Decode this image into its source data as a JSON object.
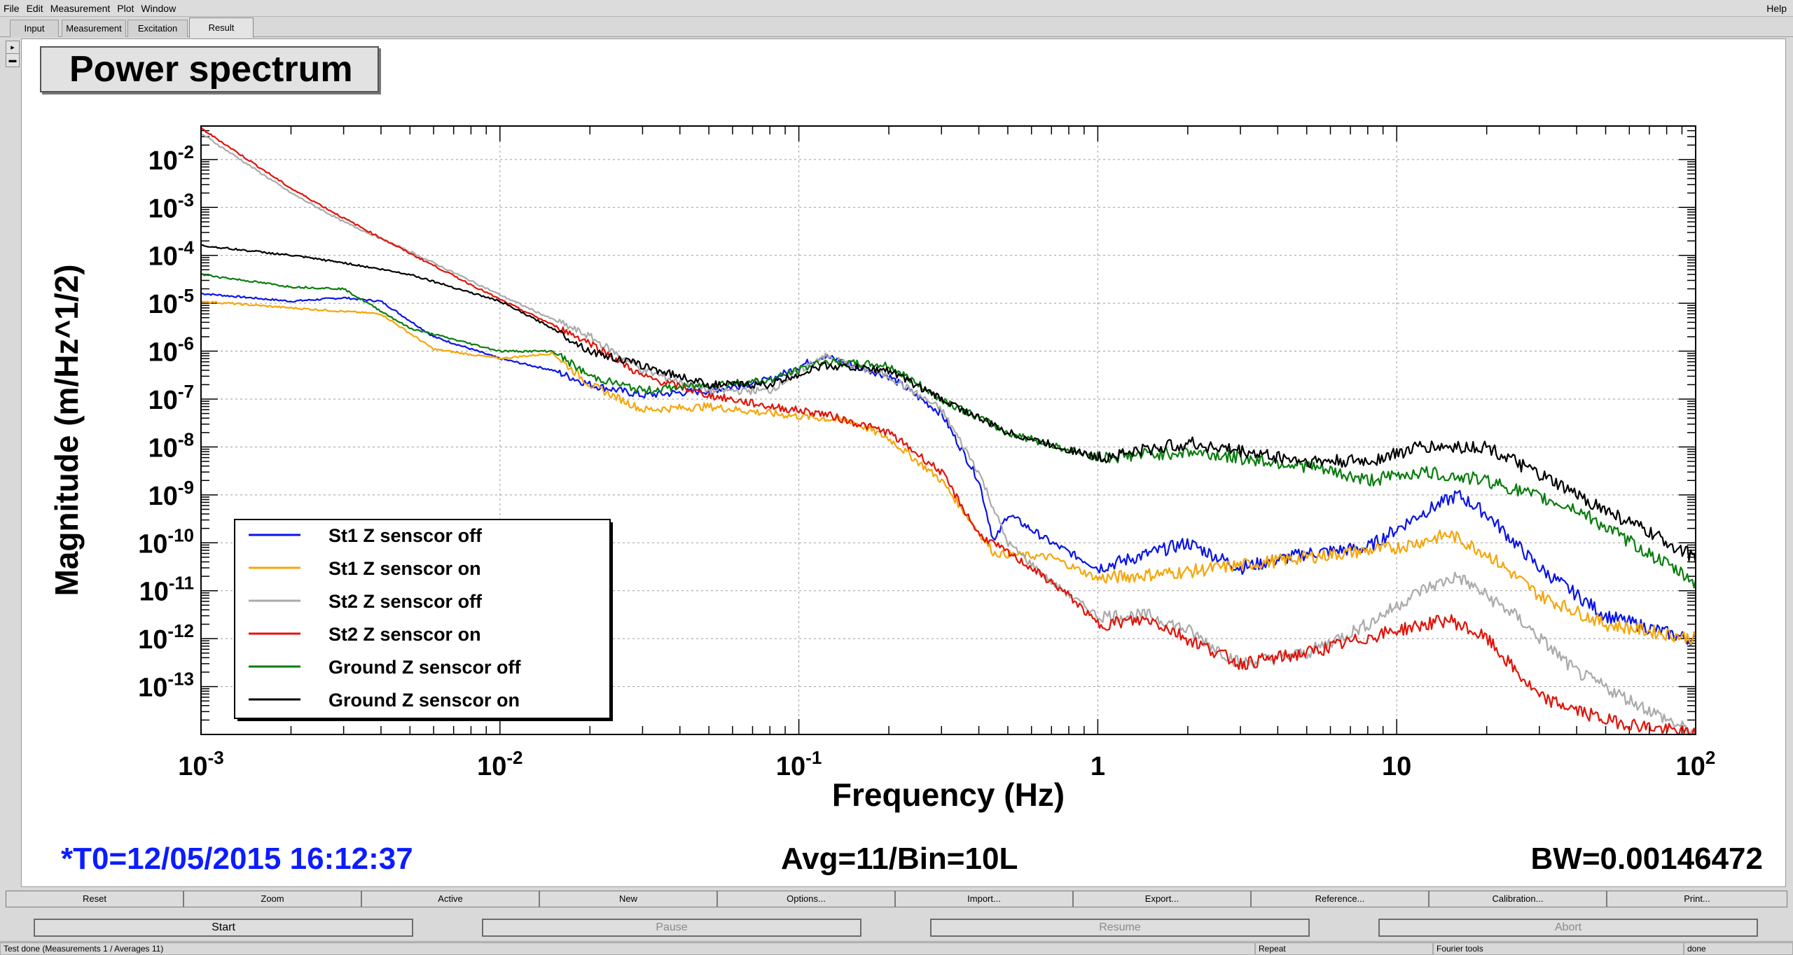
{
  "menubar": {
    "file": "File",
    "edit": "Edit",
    "measurement": "Measurement",
    "plot": "Plot",
    "window": "Window",
    "help": "Help"
  },
  "tabs": [
    "Input",
    "Measurement",
    "Excitation",
    "Result"
  ],
  "plot": {
    "title": "Power spectrum",
    "t0": "*T0=12/05/2015 16:12:37",
    "avg": "Avg=11/Bin=10L",
    "bw": "BW=0.00146472"
  },
  "chart_data": {
    "type": "line",
    "title": "Power spectrum",
    "xlabel": "Frequency (Hz)",
    "ylabel": "Magnitude (m/Hz^1/2)",
    "xscale": "log",
    "yscale": "log",
    "xlim": [
      0.001,
      100
    ],
    "ylim": [
      1e-14,
      0.05
    ],
    "grid": true,
    "legend_position": "bottom-left",
    "x_tick_labels": [
      {
        "v": 0.001,
        "base": "10",
        "exp": "-3"
      },
      {
        "v": 0.01,
        "base": "10",
        "exp": "-2"
      },
      {
        "v": 0.1,
        "base": "10",
        "exp": "-1"
      },
      {
        "v": 1,
        "base": "1",
        "exp": ""
      },
      {
        "v": 10,
        "base": "10",
        "exp": ""
      },
      {
        "v": 100,
        "base": "10",
        "exp": "2"
      }
    ],
    "y_tick_labels": [
      {
        "v": 0.01,
        "base": "10",
        "exp": "-2"
      },
      {
        "v": 0.001,
        "base": "10",
        "exp": "-3"
      },
      {
        "v": 0.0001,
        "base": "10",
        "exp": "-4"
      },
      {
        "v": 1e-05,
        "base": "10",
        "exp": "-5"
      },
      {
        "v": 1e-06,
        "base": "10",
        "exp": "-6"
      },
      {
        "v": 1e-07,
        "base": "10",
        "exp": "-7"
      },
      {
        "v": 1e-08,
        "base": "10",
        "exp": "-8"
      },
      {
        "v": 1e-09,
        "base": "10",
        "exp": "-9"
      },
      {
        "v": 1e-10,
        "base": "10",
        "exp": "-10"
      },
      {
        "v": 1e-11,
        "base": "10",
        "exp": "-11"
      },
      {
        "v": 1e-12,
        "base": "10",
        "exp": "-12"
      },
      {
        "v": 1e-13,
        "base": "10",
        "exp": "-13"
      }
    ],
    "series": [
      {
        "name": "St1 Z senscor off",
        "color": "#0a14e6",
        "points": [
          [
            0.001,
            1.6e-05
          ],
          [
            0.002,
            1.1e-05
          ],
          [
            0.003,
            1.3e-05
          ],
          [
            0.004,
            1.1e-05
          ],
          [
            0.006,
            2e-06
          ],
          [
            0.01,
            7e-07
          ],
          [
            0.015,
            4e-07
          ],
          [
            0.02,
            2e-07
          ],
          [
            0.03,
            1.2e-07
          ],
          [
            0.05,
            1.5e-07
          ],
          [
            0.08,
            2.5e-07
          ],
          [
            0.12,
            8e-07
          ],
          [
            0.2,
            3e-07
          ],
          [
            0.3,
            5e-08
          ],
          [
            0.4,
            2e-09
          ],
          [
            0.45,
            1e-10
          ],
          [
            0.5,
            4e-10
          ],
          [
            0.7,
            1e-10
          ],
          [
            1,
            3e-11
          ],
          [
            2,
            1e-10
          ],
          [
            3,
            3e-11
          ],
          [
            5,
            6e-11
          ],
          [
            8,
            8e-11
          ],
          [
            12,
            4e-10
          ],
          [
            16,
            1e-09
          ],
          [
            20,
            4e-10
          ],
          [
            30,
            3e-11
          ],
          [
            50,
            3e-12
          ],
          [
            100,
            9e-13
          ]
        ]
      },
      {
        "name": "St1 Z senscor on",
        "color": "#f5a60a",
        "points": [
          [
            0.001,
            1.1e-05
          ],
          [
            0.002,
            8e-06
          ],
          [
            0.004,
            6e-06
          ],
          [
            0.006,
            1.1e-06
          ],
          [
            0.01,
            7e-07
          ],
          [
            0.015,
            9e-07
          ],
          [
            0.02,
            2e-07
          ],
          [
            0.03,
            6e-08
          ],
          [
            0.05,
            7e-08
          ],
          [
            0.08,
            5e-08
          ],
          [
            0.15,
            3.5e-08
          ],
          [
            0.2,
            1.5e-08
          ],
          [
            0.3,
            2e-09
          ],
          [
            0.45,
            6e-11
          ],
          [
            0.7,
            5e-11
          ],
          [
            1,
            1.8e-11
          ],
          [
            2,
            2.5e-11
          ],
          [
            5,
            5e-11
          ],
          [
            10,
            8e-11
          ],
          [
            15,
            1.5e-10
          ],
          [
            20,
            6e-11
          ],
          [
            30,
            8e-12
          ],
          [
            50,
            2e-12
          ],
          [
            100,
            1e-12
          ]
        ]
      },
      {
        "name": "St2 Z senscor off",
        "color": "#aaaaaa",
        "points": [
          [
            0.001,
            0.035
          ],
          [
            0.002,
            0.002
          ],
          [
            0.003,
            0.0005
          ],
          [
            0.005,
            0.00012
          ],
          [
            0.01,
            1.5e-05
          ],
          [
            0.02,
            2e-06
          ],
          [
            0.03,
            4e-07
          ],
          [
            0.05,
            1.5e-07
          ],
          [
            0.08,
            1.5e-07
          ],
          [
            0.12,
            8e-07
          ],
          [
            0.2,
            3e-07
          ],
          [
            0.3,
            6e-08
          ],
          [
            0.4,
            3e-09
          ],
          [
            0.5,
            1e-10
          ],
          [
            0.7,
            1.5e-11
          ],
          [
            1,
            3e-12
          ],
          [
            1.5,
            3e-12
          ],
          [
            2,
            1.5e-12
          ],
          [
            3,
            3e-13
          ],
          [
            5,
            5e-13
          ],
          [
            8,
            2e-12
          ],
          [
            12,
            1e-11
          ],
          [
            16,
            2e-11
          ],
          [
            25,
            3e-12
          ],
          [
            40,
            2e-13
          ],
          [
            100,
            1e-14
          ]
        ]
      },
      {
        "name": "St2 Z senscor on",
        "color": "#e0140a",
        "points": [
          [
            0.001,
            0.045
          ],
          [
            0.002,
            0.0025
          ],
          [
            0.003,
            0.0006
          ],
          [
            0.005,
            0.00011
          ],
          [
            0.01,
            1.2e-05
          ],
          [
            0.02,
            1.5e-06
          ],
          [
            0.03,
            3e-07
          ],
          [
            0.05,
            1.2e-07
          ],
          [
            0.08,
            7e-08
          ],
          [
            0.12,
            5e-08
          ],
          [
            0.2,
            2e-08
          ],
          [
            0.3,
            3e-09
          ],
          [
            0.4,
            1.5e-10
          ],
          [
            0.6,
            3e-11
          ],
          [
            0.8,
            8e-12
          ],
          [
            1,
            2e-12
          ],
          [
            1.5,
            2.5e-12
          ],
          [
            2,
            1e-12
          ],
          [
            3,
            3e-13
          ],
          [
            5,
            5e-13
          ],
          [
            10,
            1.5e-12
          ],
          [
            15,
            2.5e-12
          ],
          [
            20,
            1e-12
          ],
          [
            30,
            6e-14
          ],
          [
            50,
            2e-14
          ],
          [
            100,
            1e-14
          ]
        ]
      },
      {
        "name": "Ground Z senscor off",
        "color": "#0b7d10",
        "points": [
          [
            0.001,
            4e-05
          ],
          [
            0.002,
            2.2e-05
          ],
          [
            0.003,
            2e-05
          ],
          [
            0.005,
            3e-06
          ],
          [
            0.01,
            1e-06
          ],
          [
            0.015,
            1e-06
          ],
          [
            0.02,
            3e-07
          ],
          [
            0.03,
            1.5e-07
          ],
          [
            0.05,
            2e-07
          ],
          [
            0.08,
            2.5e-07
          ],
          [
            0.12,
            6e-07
          ],
          [
            0.2,
            5e-07
          ],
          [
            0.3,
            1e-07
          ],
          [
            0.5,
            2e-08
          ],
          [
            1,
            6e-09
          ],
          [
            2,
            8e-09
          ],
          [
            5,
            4e-09
          ],
          [
            8,
            2e-09
          ],
          [
            12,
            3e-09
          ],
          [
            20,
            2e-09
          ],
          [
            40,
            5e-10
          ],
          [
            100,
            1.5e-11
          ]
        ]
      },
      {
        "name": "Ground Z senscor on",
        "color": "#000000",
        "points": [
          [
            0.001,
            0.00016
          ],
          [
            0.002,
            0.0001
          ],
          [
            0.003,
            7e-05
          ],
          [
            0.005,
            4e-05
          ],
          [
            0.01,
            1.1e-05
          ],
          [
            0.015,
            3e-06
          ],
          [
            0.02,
            1e-06
          ],
          [
            0.03,
            5e-07
          ],
          [
            0.05,
            2e-07
          ],
          [
            0.08,
            2e-07
          ],
          [
            0.12,
            5e-07
          ],
          [
            0.2,
            4e-07
          ],
          [
            0.3,
            1e-07
          ],
          [
            0.5,
            2e-08
          ],
          [
            1,
            6e-09
          ],
          [
            2,
            1.2e-08
          ],
          [
            5,
            5e-09
          ],
          [
            8,
            5e-09
          ],
          [
            12,
            1e-08
          ],
          [
            20,
            1e-08
          ],
          [
            40,
            1e-09
          ],
          [
            100,
            5e-11
          ]
        ]
      }
    ]
  },
  "toolbar1": [
    "Reset",
    "Zoom",
    "Active",
    "New",
    "Options...",
    "Import...",
    "Export...",
    "Reference...",
    "Calibration...",
    "Print..."
  ],
  "toolbar2": [
    "Start",
    "Pause",
    "Resume",
    "Abort"
  ],
  "status": {
    "message": "Test done (Measurements 1 / Averages 11)",
    "repeat": "Repeat",
    "fourier": "Fourier tools",
    "state": "done"
  }
}
